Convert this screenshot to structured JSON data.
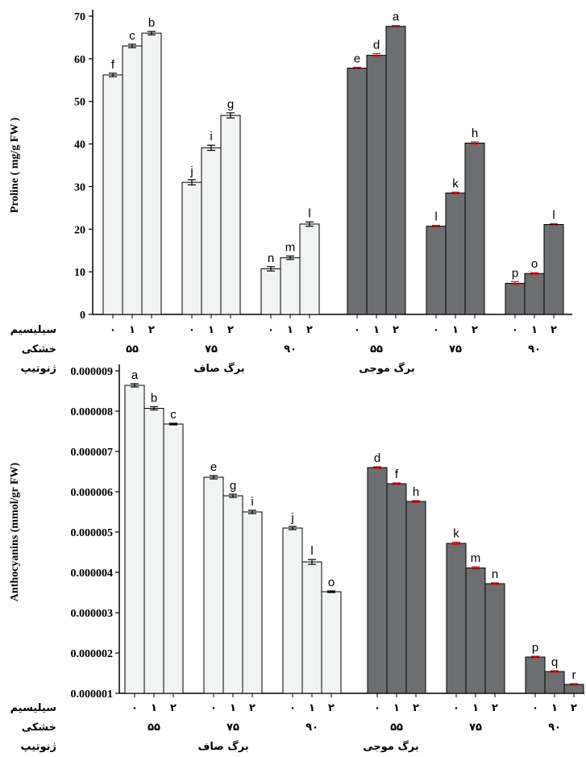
{
  "chart_data": [
    {
      "type": "bar",
      "ylabel": "Proline ( mg/g FW )",
      "ylim": [
        0,
        70
      ],
      "yticks": [
        "0",
        "10",
        "20",
        "30",
        "40",
        "50",
        "60",
        "70"
      ],
      "row_labels": {
        "silicon": "سیلیسیم",
        "drought": "خشکی",
        "genotype": "ژنوتیپ"
      },
      "silicon_levels": [
        "۰",
        "۱",
        "۲"
      ],
      "drought_levels": [
        "۵۵",
        "۷۵",
        "۹۰"
      ],
      "genotypes": [
        "برگ صاف",
        "برگ موجی"
      ],
      "colors": {
        "برگ صاف": "#f2f3f3",
        "برگ موجی": "#6d6e71",
        "error_bar_smooth": "#000000",
        "error_bar_wavy": "#d7191c"
      },
      "series": [
        {
          "name": "برگ صاف",
          "groups": [
            {
              "drought": "۵۵",
              "values": [
                56.2,
                63.0,
                66.0
              ],
              "errors": [
                0.4,
                0.4,
                0.4
              ],
              "letters": [
                "f",
                "c",
                "b"
              ]
            },
            {
              "drought": "۷۵",
              "values": [
                31.0,
                39.1,
                46.7
              ],
              "errors": [
                0.6,
                0.6,
                0.6
              ],
              "letters": [
                "j",
                "i",
                "g"
              ]
            },
            {
              "drought": "۹۰",
              "values": [
                10.7,
                13.3,
                21.2
              ],
              "errors": [
                0.5,
                0.4,
                0.5
              ],
              "letters": [
                "n",
                "m",
                "l"
              ]
            }
          ]
        },
        {
          "name": "برگ موجی",
          "groups": [
            {
              "drought": "۵۵",
              "values": [
                57.8,
                60.8,
                67.6
              ],
              "errors": [
                0.2,
                0.4,
                0.2
              ],
              "letters": [
                "e",
                "d",
                "a"
              ]
            },
            {
              "drought": "۷۵",
              "values": [
                20.7,
                28.5,
                40.2
              ],
              "errors": [
                0.2,
                0.2,
                0.3
              ],
              "letters": [
                "l",
                "k",
                "h"
              ]
            },
            {
              "drought": "۹۰",
              "values": [
                7.3,
                9.6,
                21.1
              ],
              "errors": [
                0.4,
                0.2,
                0.2
              ],
              "letters": [
                "p",
                "o",
                "l"
              ]
            }
          ]
        }
      ]
    },
    {
      "type": "bar",
      "ylabel": "Anthocyanins (mmol/gr FW)",
      "ylim": [
        1e-06,
        9e-06
      ],
      "yticks": [
        "0.000001",
        "0.000002",
        "0.000003",
        "0.000004",
        "0.000005",
        "0.000006",
        "0.000007",
        "0.000008",
        "0.000009"
      ],
      "row_labels": {
        "silicon": "سیلیسیم",
        "drought": "خشکی",
        "genotype": "ژنوتیپ"
      },
      "silicon_levels": [
        "۰",
        "۱",
        "۲"
      ],
      "drought_levels": [
        "۵۵",
        "۷۵",
        "۹۰"
      ],
      "genotypes": [
        "برگ صاف",
        "برگ موجی"
      ],
      "colors": {
        "برگ صاف": "#f2f3f3",
        "برگ موجی": "#6d6e71",
        "error_bar_smooth": "#000000",
        "error_bar_wavy": "#d7191c"
      },
      "series": [
        {
          "name": "برگ صاف",
          "groups": [
            {
              "drought": "۵۵",
              "values": [
                8.64e-06,
                8.07e-06,
                7.68e-06
              ],
              "errors": [
                4e-08,
                4e-08,
                2e-08
              ],
              "letters": [
                "a",
                "b",
                "c"
              ]
            },
            {
              "drought": "۷۵",
              "values": [
                6.36e-06,
                5.9e-06,
                5.5e-06
              ],
              "errors": [
                4e-08,
                4e-08,
                4e-08
              ],
              "letters": [
                "e",
                "g",
                "i"
              ]
            },
            {
              "drought": "۹۰",
              "values": [
                5.1e-06,
                4.26e-06,
                3.52e-06
              ],
              "errors": [
                4e-08,
                6e-08,
                2e-08
              ],
              "letters": [
                "j",
                "l",
                "o"
              ]
            }
          ]
        },
        {
          "name": "برگ موجی",
          "groups": [
            {
              "drought": "۵۵",
              "values": [
                6.6e-06,
                6.2e-06,
                5.76e-06
              ],
              "errors": [
                2e-08,
                2e-08,
                2e-08
              ],
              "letters": [
                "d",
                "f",
                "h"
              ]
            },
            {
              "drought": "۷۵",
              "values": [
                4.72e-06,
                4.11e-06,
                3.72e-06
              ],
              "errors": [
                3e-08,
                3e-08,
                2e-08
              ],
              "letters": [
                "k",
                "m",
                "n"
              ]
            },
            {
              "drought": "۹۰",
              "values": [
                1.9e-06,
                1.54e-06,
                1.22e-06
              ],
              "errors": [
                2e-08,
                2e-08,
                2e-08
              ],
              "letters": [
                "p",
                "q",
                "r"
              ]
            }
          ]
        }
      ]
    }
  ]
}
